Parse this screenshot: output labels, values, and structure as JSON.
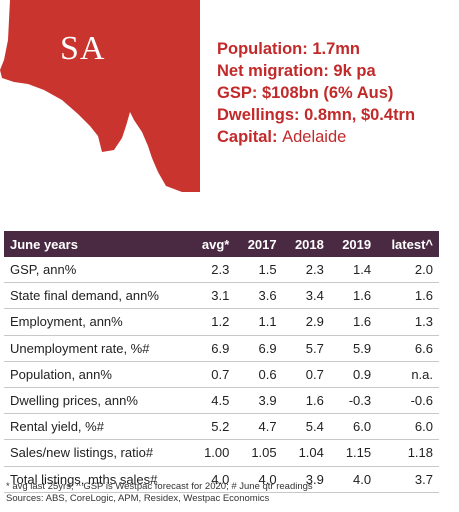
{
  "map": {
    "label": "SA",
    "color": "#c9342f"
  },
  "facts": [
    {
      "key": "Population: ",
      "value": "1.7mn"
    },
    {
      "key": "Net migration: ",
      "value": "9k pa"
    },
    {
      "key": "GSP: ",
      "value": "$108bn (6% Aus)"
    },
    {
      "key": "Dwellings: ",
      "value": "0.8mn, $0.4trn"
    },
    {
      "key": "Capital: ",
      "value": "Adelaide"
    }
  ],
  "table": {
    "headers": [
      "June years",
      "avg*",
      "2017",
      "2018",
      "2019",
      "latest^"
    ],
    "rows": [
      [
        "GSP, ann%",
        "2.3",
        "1.5",
        "2.3",
        "1.4",
        "2.0"
      ],
      [
        "State final demand, ann%",
        "3.1",
        "3.6",
        "3.4",
        "1.6",
        "1.6"
      ],
      [
        "Employment, ann%",
        "1.2",
        "1.1",
        "2.9",
        "1.6",
        "1.3"
      ],
      [
        "Unemployment rate, %#",
        "6.9",
        "6.9",
        "5.7",
        "5.9",
        "6.6"
      ],
      [
        "Population, ann%",
        "0.7",
        "0.6",
        "0.7",
        "0.9",
        "n.a."
      ],
      [
        "Dwelling prices, ann%",
        "4.5",
        "3.9",
        "1.6",
        "-0.3",
        "-0.6"
      ],
      [
        "Rental yield, %#",
        "5.2",
        "4.7",
        "5.4",
        "6.0",
        "6.0"
      ],
      [
        "Sales/new listings, ratio#",
        "1.00",
        "1.05",
        "1.04",
        "1.15",
        "1.18"
      ],
      [
        "Total listings, mths sales#",
        "4.0",
        "4.0",
        "3.9",
        "4.0",
        "3.7"
      ]
    ]
  },
  "notes": {
    "line1": "* avg last 25yrs; ^ GSP is Westpac forecast for 2020; # June qtr readings",
    "line2": "Sources: ABS, CoreLogic, APM, Residex, Westpac Economics"
  }
}
